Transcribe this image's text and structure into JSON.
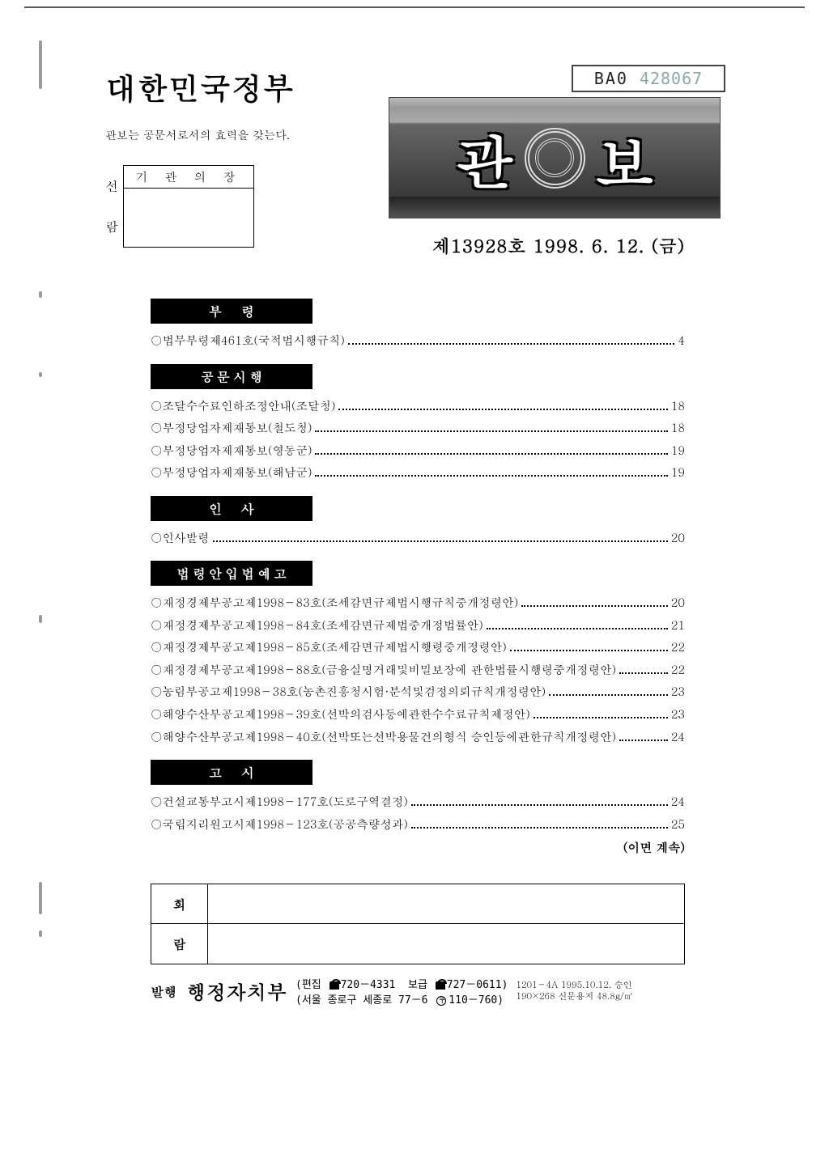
{
  "header": {
    "main_title": "대한민국정부",
    "subtitle": "관보는 공문서로서의 효력을 갖는다.",
    "seal_box_header": "기 관 의 장",
    "seon": "선",
    "ram": "람",
    "stamp_code": "BA0",
    "stamp_number": "428067",
    "banner_left": "관",
    "banner_right": "보",
    "issue_line": "제13928호  1998. 6. 12. (금)"
  },
  "sections": [
    {
      "tab": "부령",
      "tab_style": "wide",
      "items": [
        {
          "text": "○법무부령제461호(국적법시행규칙)",
          "page": "4"
        }
      ]
    },
    {
      "tab": "공문시행",
      "tab_style": "tight",
      "items": [
        {
          "text": "○조달수수료인하조정안내(조달청)",
          "page": "18"
        },
        {
          "text": "○부정당업자제재통보(철도청)",
          "page": "18"
        },
        {
          "text": "○부정당업자제재통보(영동군)",
          "page": "19"
        },
        {
          "text": "○부정당업자제재통보(해남군)",
          "page": "19"
        }
      ]
    },
    {
      "tab": "인사",
      "tab_style": "wide",
      "items": [
        {
          "text": "○인사발령",
          "page": "20"
        }
      ]
    },
    {
      "tab": "법령안입법예고",
      "tab_style": "tight",
      "items": [
        {
          "text": "○재정경제부공고제1998－83호(조세감면규제법시행규칙중개정령안)",
          "page": "20"
        },
        {
          "text": "○재정경제부공고제1998－84호(조세감면규제법중개정법률안)",
          "page": "21"
        },
        {
          "text": "○재정경제부공고제1998－85호(조세감면규제법시행령중개정령안)",
          "page": "22"
        },
        {
          "text": "○재정경제부공고제1998－88호(금융실명거래및비밀보장에 관한법률시행령중개정령안)",
          "page": "22"
        },
        {
          "text": "○농림부공고제1998－38호(농촌진흥청시험·분석및검정의뢰규칙개정령안)",
          "page": "23"
        },
        {
          "text": "○해양수산부공고제1998－39호(선박의검사등에관한수수료규칙제정안)",
          "page": "23"
        },
        {
          "text": "○해양수산부공고제1998－40호(선박또는선박용물건의형식 승인등에관한규칙개정령안)",
          "page": "24"
        }
      ]
    },
    {
      "tab": "고시",
      "tab_style": "wide",
      "items": [
        {
          "text": "○건설교통부고시제1998－177호(도로구역결정)",
          "page": "24"
        },
        {
          "text": "○국립지리원고시제1998－123호(공공측량성과)",
          "page": "25"
        }
      ]
    }
  ],
  "continue_note": "(이면 계속)",
  "hoe": {
    "r1": "회",
    "r2": "람"
  },
  "footer": {
    "pub": "발행",
    "issuer": "행정자치부",
    "edit_label": "편집",
    "tel1": "720－4331",
    "dist_label": "보급",
    "tel2": "727－0611",
    "addr": "서울 종로구 세종로 77－6",
    "post": "110－760",
    "meta1": "1201－4A  1995.10.12. 승인",
    "meta2": "190×268 신문용지 48.8g/㎡"
  },
  "colors": {
    "text": "#000000",
    "bg": "#ffffff",
    "tab_bg": "#000000",
    "tab_fg": "#ffffff",
    "stamp_num": "#88aaaa"
  }
}
